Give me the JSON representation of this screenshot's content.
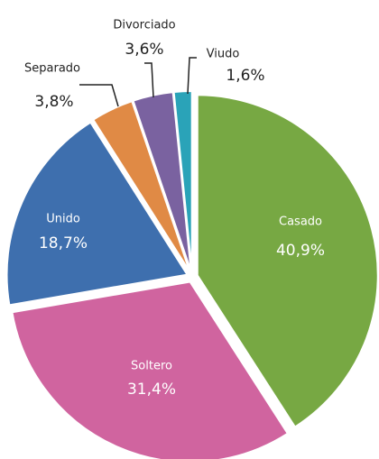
{
  "chart_data": {
    "type": "pie",
    "categories": [
      "Casado",
      "Soltero",
      "Unido",
      "Separado",
      "Divorciado",
      "Viudo"
    ],
    "values": [
      40.9,
      31.4,
      18.7,
      3.8,
      3.6,
      1.6
    ],
    "value_labels": [
      "40,9%",
      "31,4%",
      "18,7%",
      "3,8%",
      "3,6%",
      "1,6%"
    ],
    "colors": [
      "#77a843",
      "#d0649f",
      "#3e6fae",
      "#e08a45",
      "#7a62a0",
      "#2aa3b8"
    ]
  }
}
